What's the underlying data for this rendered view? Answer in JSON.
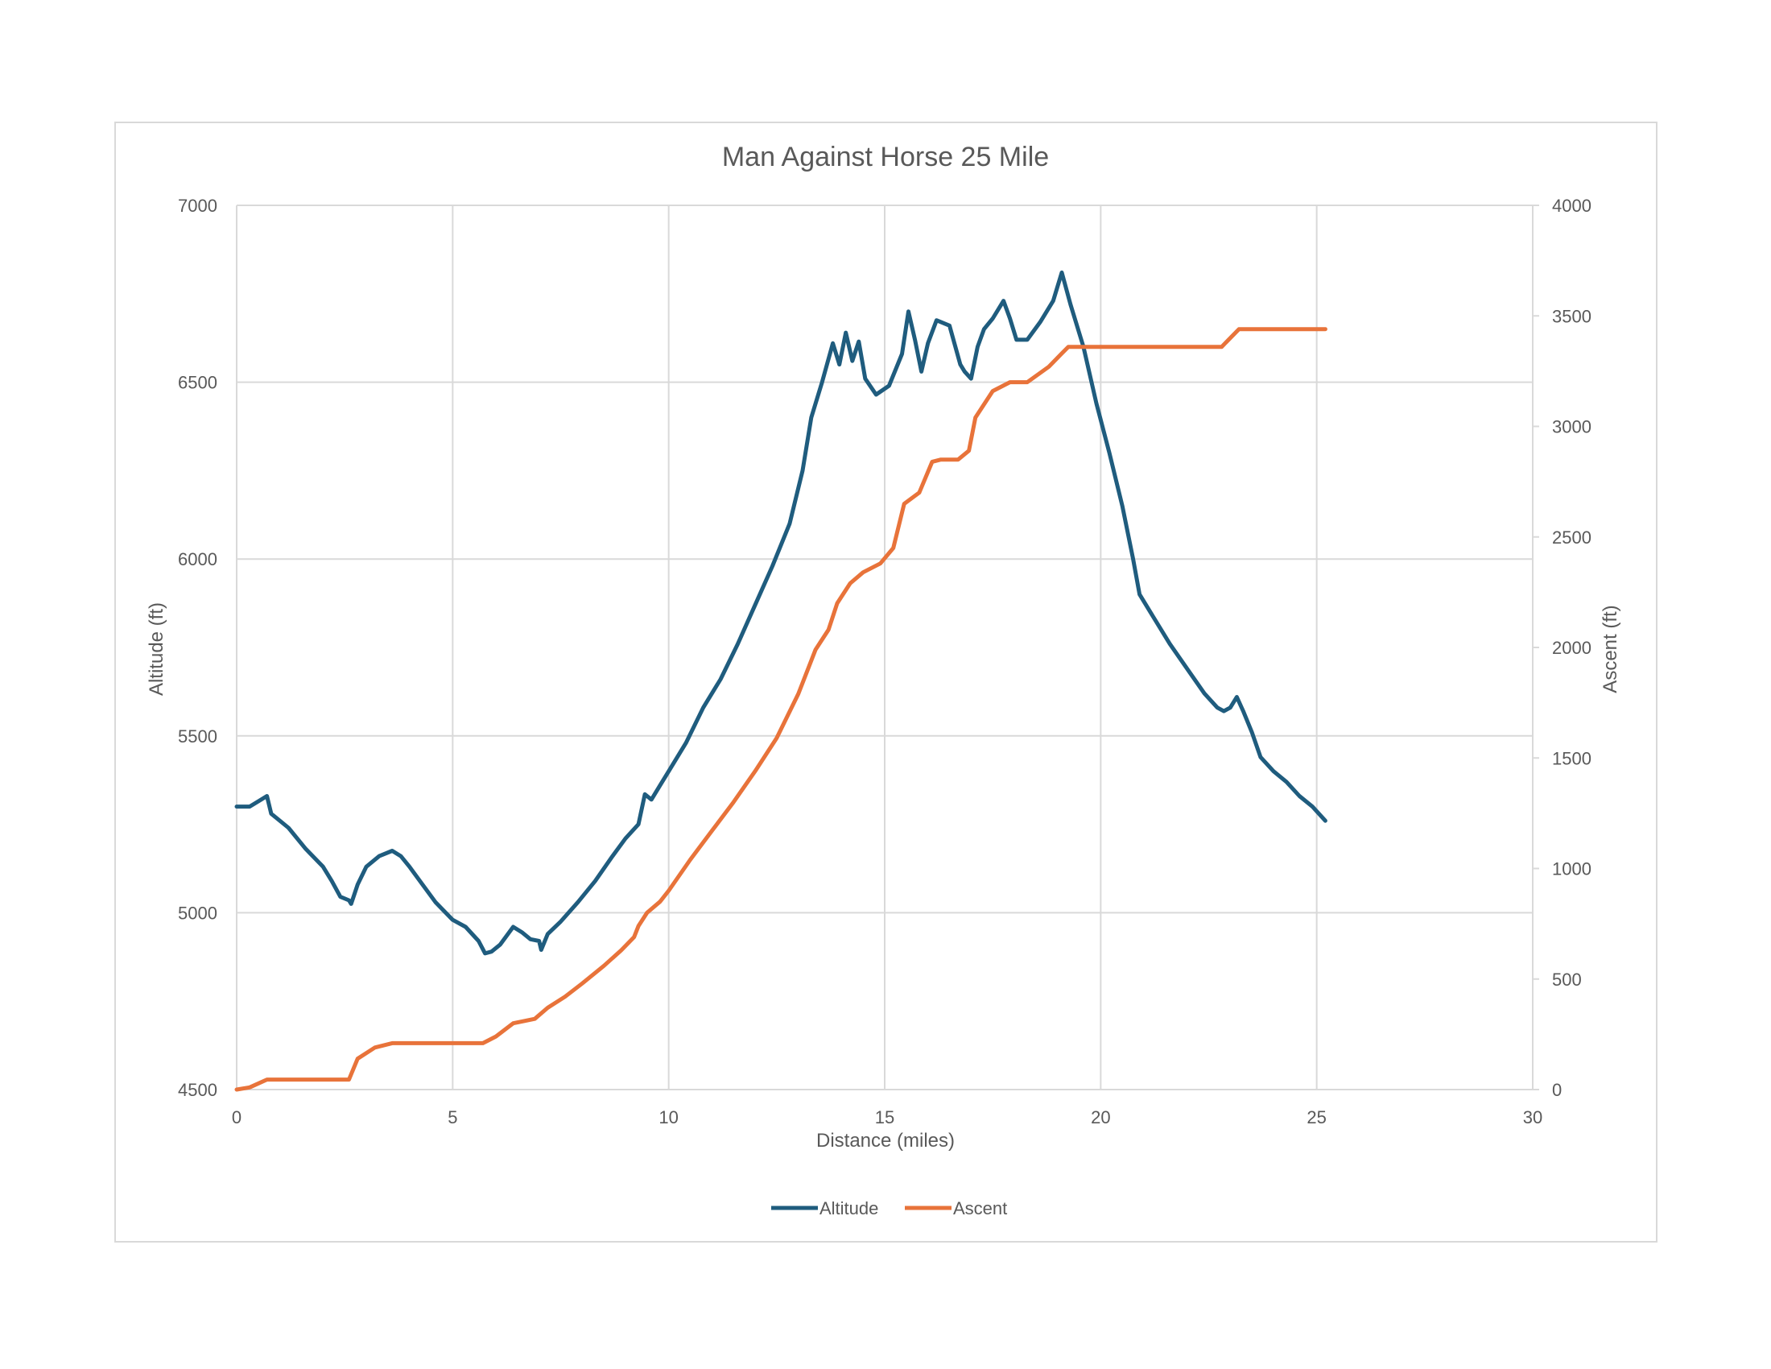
{
  "chart_data": {
    "type": "line",
    "title": "Man Against Horse 25 Mile",
    "xlabel": "Distance (miles)",
    "ylabel": "Altitude (ft)",
    "y2label": "Ascent (ft)",
    "xlim": [
      0,
      30
    ],
    "ylim": [
      4500,
      7000
    ],
    "y2lim": [
      0,
      4000
    ],
    "x_ticks": [
      "0",
      "5",
      "10",
      "15",
      "20",
      "25",
      "30"
    ],
    "y_ticks": [
      "4500",
      "5000",
      "5500",
      "6000",
      "6500",
      "7000"
    ],
    "y2_ticks": [
      "0",
      "500",
      "1000",
      "1500",
      "2000",
      "2500",
      "3000",
      "3500",
      "4000"
    ],
    "grid": true,
    "legend_position": "bottom",
    "series": [
      {
        "name": "Altitude",
        "axis": "left",
        "color": "#1f5c7e",
        "points": [
          [
            0,
            5300
          ],
          [
            0.3,
            5300
          ],
          [
            0.5,
            5315
          ],
          [
            0.7,
            5330
          ],
          [
            0.8,
            5280
          ],
          [
            1.2,
            5240
          ],
          [
            1.6,
            5180
          ],
          [
            2.0,
            5130
          ],
          [
            2.2,
            5090
          ],
          [
            2.4,
            5045
          ],
          [
            2.6,
            5035
          ],
          [
            2.65,
            5025
          ],
          [
            2.8,
            5080
          ],
          [
            3.0,
            5130
          ],
          [
            3.3,
            5160
          ],
          [
            3.6,
            5175
          ],
          [
            3.8,
            5160
          ],
          [
            4.0,
            5130
          ],
          [
            4.3,
            5080
          ],
          [
            4.6,
            5030
          ],
          [
            5.0,
            4980
          ],
          [
            5.3,
            4960
          ],
          [
            5.6,
            4920
          ],
          [
            5.75,
            4885
          ],
          [
            5.9,
            4890
          ],
          [
            6.1,
            4910
          ],
          [
            6.4,
            4960
          ],
          [
            6.6,
            4945
          ],
          [
            6.8,
            4925
          ],
          [
            7.0,
            4920
          ],
          [
            7.05,
            4895
          ],
          [
            7.2,
            4940
          ],
          [
            7.5,
            4975
          ],
          [
            7.9,
            5030
          ],
          [
            8.3,
            5090
          ],
          [
            8.7,
            5160
          ],
          [
            9.0,
            5210
          ],
          [
            9.3,
            5250
          ],
          [
            9.45,
            5335
          ],
          [
            9.6,
            5320
          ],
          [
            9.8,
            5360
          ],
          [
            10.0,
            5400
          ],
          [
            10.4,
            5480
          ],
          [
            10.8,
            5580
          ],
          [
            11.2,
            5660
          ],
          [
            11.6,
            5760
          ],
          [
            12.0,
            5870
          ],
          [
            12.4,
            5980
          ],
          [
            12.8,
            6100
          ],
          [
            13.1,
            6250
          ],
          [
            13.3,
            6400
          ],
          [
            13.55,
            6500
          ],
          [
            13.8,
            6610
          ],
          [
            13.95,
            6550
          ],
          [
            14.1,
            6640
          ],
          [
            14.25,
            6560
          ],
          [
            14.4,
            6615
          ],
          [
            14.55,
            6510
          ],
          [
            14.8,
            6465
          ],
          [
            15.1,
            6490
          ],
          [
            15.4,
            6580
          ],
          [
            15.55,
            6700
          ],
          [
            15.7,
            6620
          ],
          [
            15.85,
            6530
          ],
          [
            16.0,
            6610
          ],
          [
            16.2,
            6675
          ],
          [
            16.5,
            6660
          ],
          [
            16.75,
            6550
          ],
          [
            16.85,
            6530
          ],
          [
            17.0,
            6510
          ],
          [
            17.15,
            6600
          ],
          [
            17.3,
            6650
          ],
          [
            17.5,
            6680
          ],
          [
            17.75,
            6730
          ],
          [
            17.9,
            6680
          ],
          [
            18.05,
            6620
          ],
          [
            18.3,
            6620
          ],
          [
            18.6,
            6670
          ],
          [
            18.9,
            6730
          ],
          [
            19.1,
            6810
          ],
          [
            19.3,
            6720
          ],
          [
            19.6,
            6600
          ],
          [
            19.9,
            6440
          ],
          [
            20.2,
            6300
          ],
          [
            20.5,
            6150
          ],
          [
            20.75,
            6000
          ],
          [
            20.9,
            5900
          ],
          [
            21.2,
            5840
          ],
          [
            21.6,
            5760
          ],
          [
            22.0,
            5690
          ],
          [
            22.4,
            5620
          ],
          [
            22.7,
            5580
          ],
          [
            22.85,
            5570
          ],
          [
            23.0,
            5580
          ],
          [
            23.15,
            5610
          ],
          [
            23.3,
            5570
          ],
          [
            23.5,
            5510
          ],
          [
            23.7,
            5440
          ],
          [
            24.0,
            5400
          ],
          [
            24.3,
            5370
          ],
          [
            24.6,
            5330
          ],
          [
            24.9,
            5300
          ],
          [
            25.2,
            5260
          ]
        ]
      },
      {
        "name": "Ascent",
        "axis": "right",
        "color": "#e8733a",
        "points": [
          [
            0,
            0
          ],
          [
            0.3,
            10
          ],
          [
            0.7,
            45
          ],
          [
            1.5,
            45
          ],
          [
            2.0,
            45
          ],
          [
            2.6,
            45
          ],
          [
            2.8,
            140
          ],
          [
            3.2,
            190
          ],
          [
            3.6,
            210
          ],
          [
            4.0,
            210
          ],
          [
            4.8,
            210
          ],
          [
            5.4,
            210
          ],
          [
            5.7,
            210
          ],
          [
            6.0,
            240
          ],
          [
            6.4,
            300
          ],
          [
            6.9,
            320
          ],
          [
            7.2,
            370
          ],
          [
            7.6,
            420
          ],
          [
            8.0,
            480
          ],
          [
            8.5,
            560
          ],
          [
            8.9,
            630
          ],
          [
            9.2,
            690
          ],
          [
            9.3,
            740
          ],
          [
            9.5,
            800
          ],
          [
            9.8,
            850
          ],
          [
            10.0,
            900
          ],
          [
            10.5,
            1040
          ],
          [
            11.0,
            1170
          ],
          [
            11.5,
            1300
          ],
          [
            12.0,
            1440
          ],
          [
            12.5,
            1590
          ],
          [
            13.0,
            1790
          ],
          [
            13.4,
            1990
          ],
          [
            13.7,
            2080
          ],
          [
            13.9,
            2200
          ],
          [
            14.2,
            2290
          ],
          [
            14.5,
            2340
          ],
          [
            14.9,
            2380
          ],
          [
            15.2,
            2450
          ],
          [
            15.45,
            2650
          ],
          [
            15.8,
            2700
          ],
          [
            16.1,
            2840
          ],
          [
            16.3,
            2850
          ],
          [
            16.7,
            2850
          ],
          [
            16.95,
            2890
          ],
          [
            17.1,
            3040
          ],
          [
            17.5,
            3160
          ],
          [
            17.9,
            3200
          ],
          [
            18.3,
            3200
          ],
          [
            18.8,
            3270
          ],
          [
            19.1,
            3330
          ],
          [
            19.25,
            3360
          ],
          [
            20.0,
            3360
          ],
          [
            21.0,
            3360
          ],
          [
            22.0,
            3360
          ],
          [
            22.8,
            3360
          ],
          [
            23.0,
            3400
          ],
          [
            23.2,
            3440
          ],
          [
            24.0,
            3440
          ],
          [
            25.2,
            3440
          ]
        ]
      }
    ]
  }
}
